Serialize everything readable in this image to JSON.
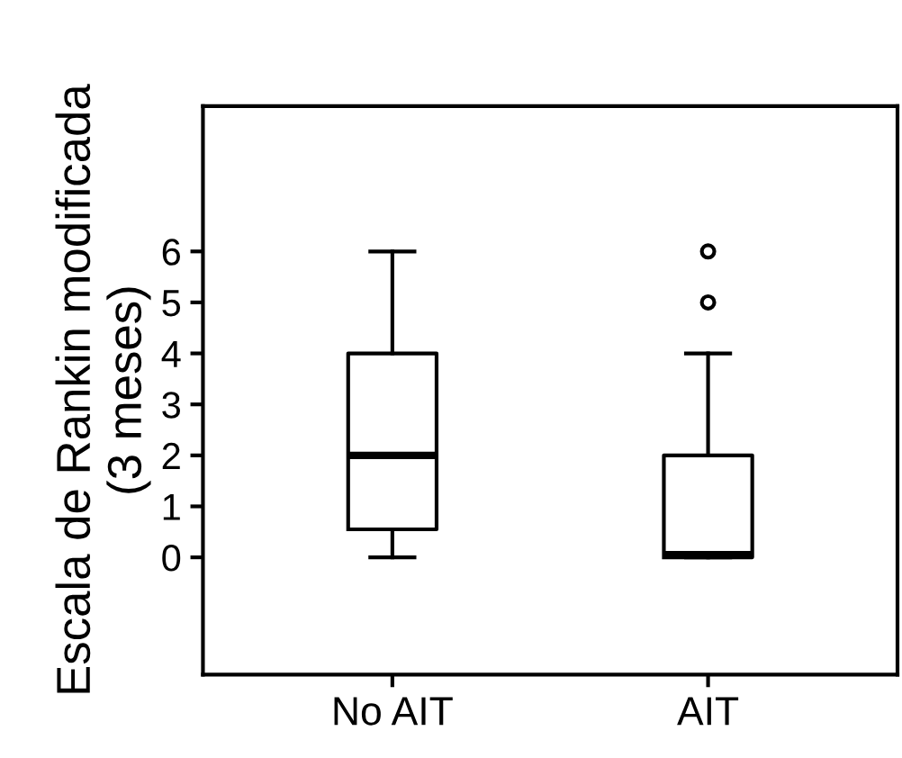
{
  "chart_data": {
    "type": "box",
    "ylabel": "Escala de Rankin modificada\n(3 meses)",
    "categories": [
      "No AIT",
      "AIT"
    ],
    "boxes": [
      {
        "low": 0,
        "q1": 0.55,
        "median": 2,
        "q3": 4,
        "high": 6
      },
      {
        "low": 0,
        "q1": 0,
        "median": 0.05,
        "q3": 2,
        "high": 4,
        "outliers": [
          5,
          6
        ]
      }
    ],
    "ylim": [
      -2.3,
      8.85
    ],
    "yticks": [
      0,
      1,
      2,
      3,
      4,
      5,
      6
    ],
    "grid": false,
    "legend": false
  }
}
